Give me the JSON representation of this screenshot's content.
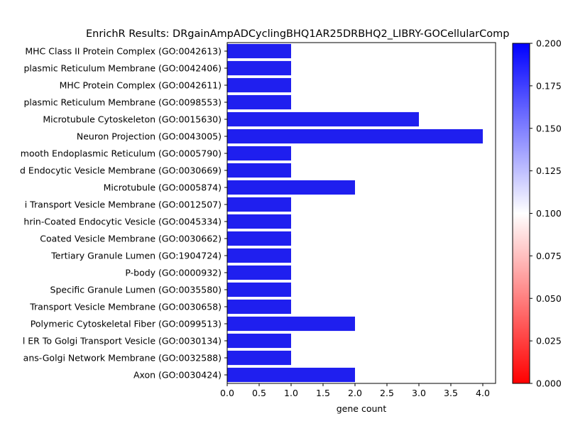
{
  "chart_data": {
    "type": "bar",
    "orientation": "horizontal",
    "title": "EnrichR Results: DRgainAmpADCyclingBHQ1AR25DRBHQ2_LIBRY-GOCellularComp",
    "xlabel": "gene count",
    "ylabel": "",
    "xlim": [
      0,
      4.2
    ],
    "x_ticks": [
      "0.0",
      "0.5",
      "1.0",
      "1.5",
      "2.0",
      "2.5",
      "3.0",
      "3.5",
      "4.0"
    ],
    "categories": [
      "MHC Class II Protein Complex (GO:0042613)",
      "plasmic Reticulum Membrane (GO:0042406)",
      "MHC Protein Complex (GO:0042611)",
      "plasmic Reticulum Membrane (GO:0098553)",
      "Microtubule Cytoskeleton (GO:0015630)",
      "Neuron Projection (GO:0043005)",
      "mooth Endoplasmic Reticulum (GO:0005790)",
      "d Endocytic Vesicle Membrane (GO:0030669)",
      "Microtubule (GO:0005874)",
      "i Transport Vesicle Membrane (GO:0012507)",
      "hrin-Coated Endocytic Vesicle (GO:0045334)",
      "Coated Vesicle Membrane (GO:0030662)",
      "Tertiary Granule Lumen (GO:1904724)",
      "P-body (GO:0000932)",
      "Specific Granule Lumen (GO:0035580)",
      "Transport Vesicle Membrane (GO:0030658)",
      "Polymeric Cytoskeletal Fiber (GO:0099513)",
      "l ER To Golgi Transport Vesicle (GO:0030134)",
      "ans-Golgi Network Membrane (GO:0032588)",
      "Axon (GO:0030424)"
    ],
    "values": [
      1,
      1,
      1,
      1,
      3,
      4,
      1,
      1,
      2,
      1,
      1,
      1,
      1,
      1,
      1,
      1,
      2,
      1,
      1,
      2
    ],
    "bar_color": "#1f1fef",
    "colorbar": {
      "range": [
        0.0,
        0.2
      ],
      "colors": [
        "#ff0000",
        "#ffffff",
        "#0000ff"
      ],
      "ticks": [
        "0.000",
        "0.025",
        "0.050",
        "0.075",
        "0.100",
        "0.125",
        "0.150",
        "0.175",
        "0.200"
      ]
    },
    "grid": false,
    "legend": "none"
  }
}
